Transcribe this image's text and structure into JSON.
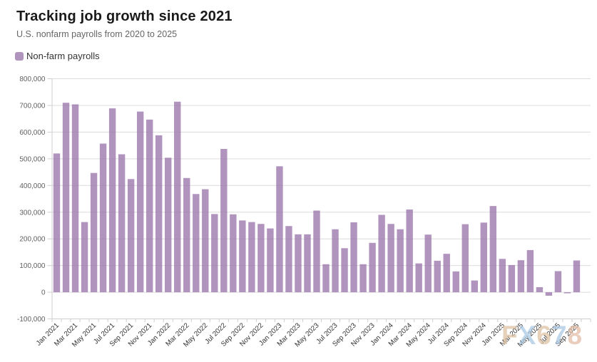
{
  "header": {
    "title": "Tracking job growth since 2021",
    "subtitle": "U.S. nonfarm payrolls from 2020 to 2025"
  },
  "legend": {
    "label": "Non-farm payrolls",
    "swatch_color": "#b194be"
  },
  "watermark": {
    "text": "FX678",
    "letter_colors": [
      "#ddc0a0",
      "#a9c7e2",
      "#ddc0a0",
      "#a9c7e2",
      "#e2baa3"
    ]
  },
  "colors": {
    "bar": "#b194be",
    "grid": "#e8e8e8",
    "axis": "#cfcfcf",
    "y_label": "#606060",
    "x_label": "#333333"
  },
  "chart_data": {
    "type": "bar",
    "title": "Tracking job growth since 2021",
    "subtitle": "U.S. nonfarm payrolls from 2020 to 2025",
    "xlabel": "",
    "ylabel": "",
    "ylim": [
      -100000,
      800000
    ],
    "ytick_step": 100000,
    "grid": true,
    "legend_position": "top-left",
    "x_label_every": 2,
    "categories": [
      "Jan 2021",
      "Feb 2021",
      "Mar 2021",
      "Apr 2021",
      "May 2021",
      "Jun 2021",
      "Jul 2021",
      "Aug 2021",
      "Sep 2021",
      "Oct 2021",
      "Nov 2021",
      "Dec 2021",
      "Jan 2022",
      "Feb 2022",
      "Mar 2022",
      "Apr 2022",
      "May 2022",
      "Jun 2022",
      "Jul 2022",
      "Aug 2022",
      "Sep 2022",
      "Oct 2022",
      "Nov 2022",
      "Dec 2022",
      "Jan 2023",
      "Feb 2023",
      "Mar 2023",
      "Apr 2023",
      "May 2023",
      "Jun 2023",
      "Jul 2023",
      "Aug 2023",
      "Sep 2023",
      "Oct 2023",
      "Nov 2023",
      "Dec 2023",
      "Jan 2024",
      "Feb 2024",
      "Mar 2024",
      "Apr 2024",
      "May 2024",
      "Jun 2024",
      "Jul 2024",
      "Aug 2024",
      "Sep 2024",
      "Oct 2024",
      "Nov 2024",
      "Dec 2024",
      "Jan 2025",
      "Feb 2025",
      "Mar 2025",
      "Apr 2025",
      "May 2025",
      "Jun 2025",
      "Jul 2025",
      "Aug 2025",
      "Sep 2025"
    ],
    "series": [
      {
        "name": "Non-farm payrolls",
        "color": "#b194be",
        "values": [
          520000,
          710000,
          704000,
          263000,
          447000,
          557000,
          689000,
          517000,
          424000,
          677000,
          647000,
          588000,
          504000,
          714000,
          428000,
          368000,
          386000,
          293000,
          537000,
          292000,
          269000,
          263000,
          256000,
          239000,
          472000,
          248000,
          217000,
          217000,
          306000,
          105000,
          236000,
          165000,
          262000,
          105000,
          185000,
          290000,
          256000,
          236000,
          310000,
          108000,
          216000,
          118000,
          144000,
          78000,
          255000,
          44000,
          261000,
          323000,
          125000,
          102000,
          120000,
          158000,
          19000,
          -13000,
          79000,
          -4000,
          119000
        ]
      }
    ]
  }
}
